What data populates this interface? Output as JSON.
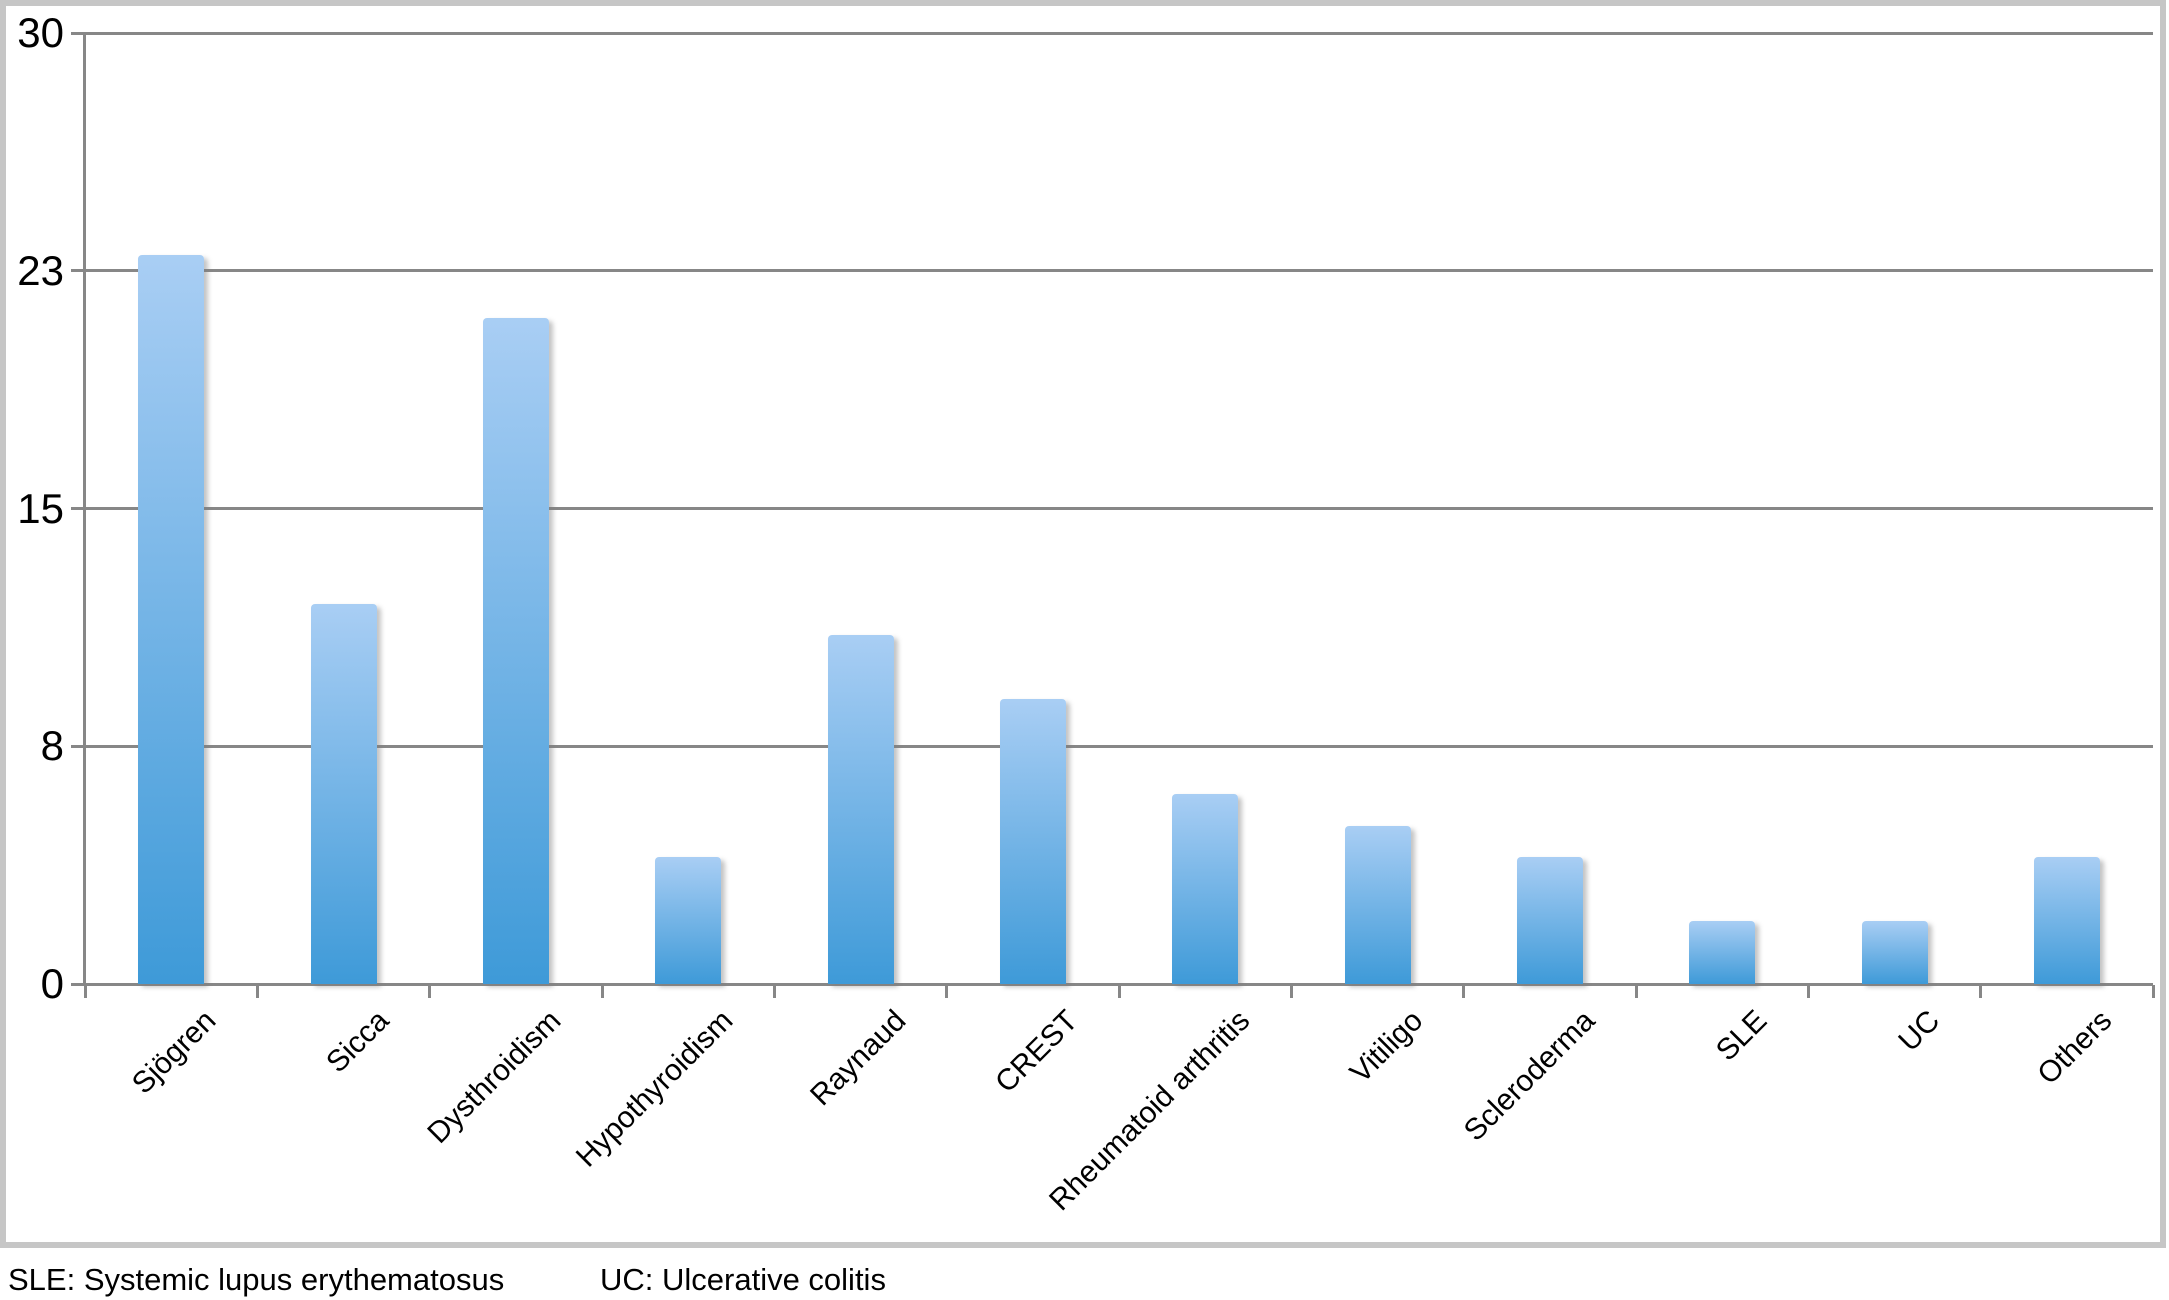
{
  "chart_data": {
    "type": "bar",
    "title": "",
    "xlabel": "",
    "ylabel": "",
    "categories": [
      "Sjögren",
      "Sicca",
      "Dysthroidism",
      "Hypothyroidism",
      "Raynaud",
      "CREST",
      "Rheumatoid arthritis",
      "Vitiligo",
      "Scleroderma",
      "SLE",
      "UC",
      "Others"
    ],
    "values": [
      23,
      12,
      21,
      4,
      11,
      9,
      6,
      5,
      4,
      2,
      2,
      4
    ],
    "ylim": [
      0,
      30
    ],
    "yticks": {
      "values": [
        0,
        7.5,
        15,
        22.5,
        30
      ],
      "labels": [
        "0",
        "8",
        "15",
        "23",
        "30"
      ]
    },
    "grid": true,
    "legend": false,
    "bar_color_top": "#a9cef4",
    "bar_color_bottom": "#3e9ad8",
    "grid_color": "#878787",
    "frame_border_color": "#c6c6c6"
  },
  "footnotes": {
    "note1": "SLE: Systemic lupus erythematosus",
    "note2": "UC: Ulcerative colitis"
  }
}
